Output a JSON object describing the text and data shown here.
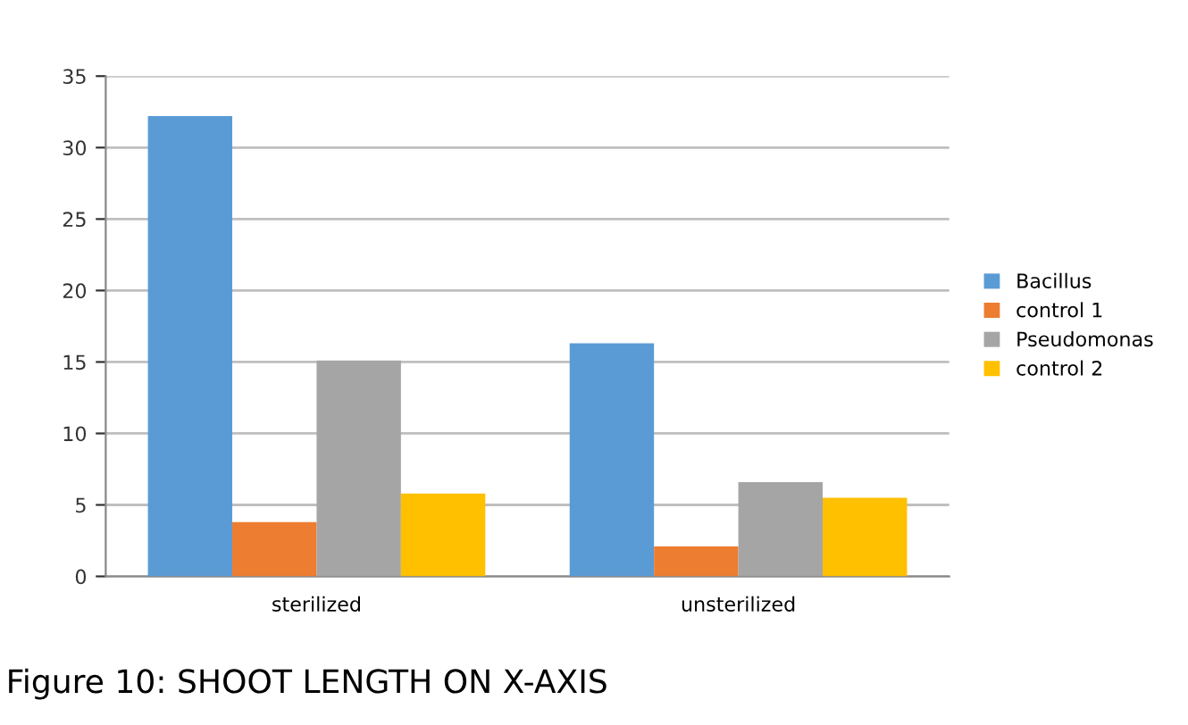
{
  "chart_data": {
    "type": "bar",
    "categories": [
      "sterilized",
      "unsterilized"
    ],
    "series": [
      {
        "name": "Bacillus",
        "color": "#5b9bd5",
        "values": [
          32.2,
          16.3
        ]
      },
      {
        "name": "control 1",
        "color": "#ed7d31",
        "values": [
          3.8,
          2.1
        ]
      },
      {
        "name": "Pseudomonas",
        "color": "#a5a5a5",
        "values": [
          15.1,
          6.6
        ]
      },
      {
        "name": "control 2",
        "color": "#ffc000",
        "values": [
          5.8,
          5.5
        ]
      }
    ],
    "ylim": [
      0,
      35
    ],
    "yticks": [
      0,
      5,
      10,
      15,
      20,
      25,
      30,
      35
    ],
    "grid": "y",
    "legend": "right",
    "annotations": [
      "Figure 10: SHOOT LENGTH ON X-AXIS"
    ]
  }
}
